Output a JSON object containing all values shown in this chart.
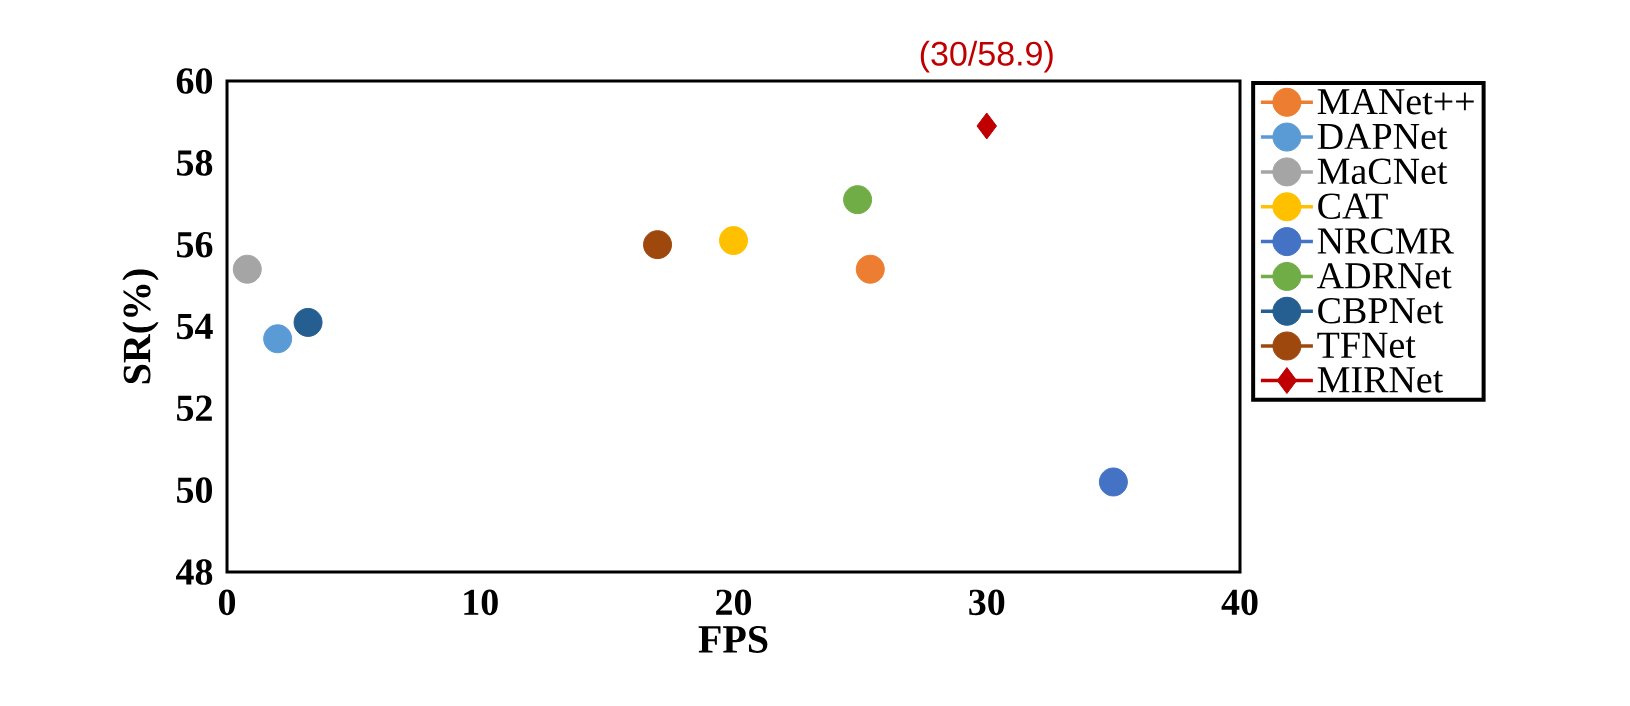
{
  "chart_data": {
    "type": "scatter",
    "xlabel": "FPS",
    "ylabel": "SR(%)",
    "xlim": [
      0,
      40
    ],
    "ylim": [
      48,
      60
    ],
    "xticks": [
      0,
      10,
      20,
      30,
      40
    ],
    "yticks": [
      48,
      50,
      52,
      54,
      56,
      58,
      60
    ],
    "grid": false,
    "legend": "right",
    "marker": "circle",
    "series": [
      {
        "name": "MANet++",
        "color": "#ed7d31",
        "x": [
          25.4
        ],
        "values": [
          55.4
        ]
      },
      {
        "name": "DAPNet",
        "color": "#5b9bd5",
        "x": [
          2.0
        ],
        "values": [
          53.7
        ]
      },
      {
        "name": "MaCNet",
        "color": "#a5a5a5",
        "x": [
          0.8
        ],
        "values": [
          55.4
        ]
      },
      {
        "name": "CAT",
        "color": "#ffc000",
        "x": [
          20.0
        ],
        "values": [
          56.1
        ]
      },
      {
        "name": "NRCMR",
        "color": "#4472c4",
        "x": [
          35.0
        ],
        "values": [
          50.2
        ]
      },
      {
        "name": "ADRNet",
        "color": "#70ad47",
        "x": [
          24.9
        ],
        "values": [
          57.1
        ]
      },
      {
        "name": "CBPNet",
        "color": "#255e91",
        "x": [
          3.2
        ],
        "values": [
          54.1
        ]
      },
      {
        "name": "TFNet",
        "color": "#9e480e",
        "x": [
          17.0
        ],
        "values": [
          56.0
        ]
      },
      {
        "name": "MIRNet",
        "color": "#c00000",
        "x": [
          30
        ],
        "values": [
          58.9
        ],
        "marker": "diamond"
      }
    ],
    "annotations": [
      {
        "text": "(30/58.9)",
        "x": 30,
        "y": 58.9
      }
    ]
  }
}
